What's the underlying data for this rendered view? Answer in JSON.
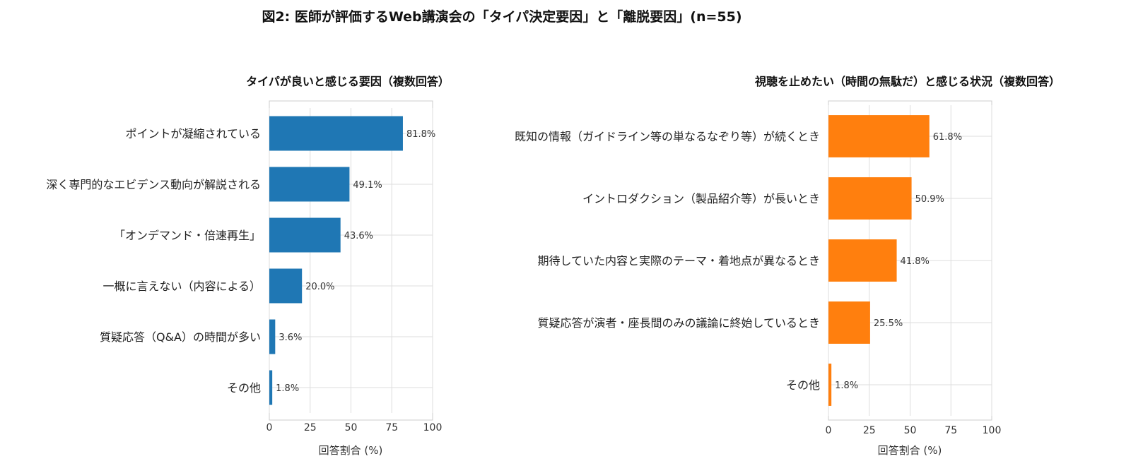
{
  "figure": {
    "title": "図2: 医師が評価するWeb講演会の「タイパ決定要因」と「離脱要因」(n=55)"
  },
  "chart_data": [
    {
      "type": "bar",
      "orientation": "horizontal",
      "title": "タイパが良いと感じる要因（複数回答）",
      "categories": [
        "ポイントが凝縮されている",
        "深く専門的なエビデンス動向が解説される",
        "「オンデマンド・倍速再生」",
        "一概に言えない（内容による）",
        "質疑応答（Q&A）の時間が多い",
        "その他"
      ],
      "values": [
        81.8,
        49.1,
        43.6,
        20.0,
        3.6,
        1.8
      ],
      "value_labels": [
        "81.8%",
        "49.1%",
        "43.6%",
        "20.0%",
        "3.6%",
        "1.8%"
      ],
      "xlabel": "回答割合 (%)",
      "ylabel": "",
      "xlim": [
        0,
        100
      ],
      "xticks": [
        "0",
        "25",
        "50",
        "75",
        "100"
      ],
      "color": "#1f77b4",
      "grid": true
    },
    {
      "type": "bar",
      "orientation": "horizontal",
      "title": "視聴を止めたい（時間の無駄だ）と感じる状況（複数回答）",
      "categories": [
        "既知の情報（ガイドライン等の単なるなぞり等）が続くとき",
        "イントロダクション（製品紹介等）が長いとき",
        "期待していた内容と実際のテーマ・着地点が異なるとき",
        "質疑応答が演者・座長間のみの議論に終始しているとき",
        "その他"
      ],
      "values": [
        61.8,
        50.9,
        41.8,
        25.5,
        1.8
      ],
      "value_labels": [
        "61.8%",
        "50.9%",
        "41.8%",
        "25.5%",
        "1.8%"
      ],
      "xlabel": "回答割合 (%)",
      "ylabel": "",
      "xlim": [
        0,
        100
      ],
      "xticks": [
        "0",
        "25",
        "50",
        "75",
        "100"
      ],
      "color": "#ff7f0e",
      "grid": true
    }
  ]
}
